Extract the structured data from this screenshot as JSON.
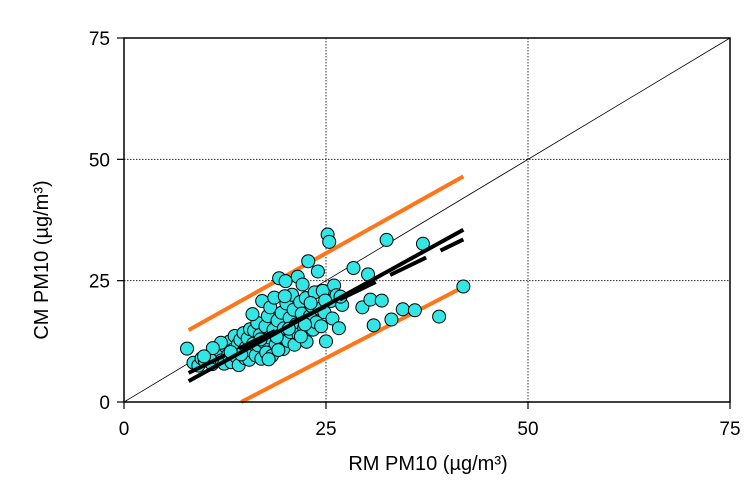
{
  "chart_data": {
    "type": "scatter",
    "xlabel": "RM PM10 (µg/m³)",
    "ylabel": "CM PM10 (µg/m³)",
    "xlim": [
      0,
      75
    ],
    "ylim": [
      0,
      75
    ],
    "x_ticks": [
      "0",
      "25",
      "50",
      "75"
    ],
    "y_ticks": [
      "0",
      "25",
      "50",
      "75"
    ],
    "grid": true,
    "legend": "none",
    "colors": {
      "points": "#33e6e6",
      "point_edge": "#000000",
      "regression": "#000000",
      "limits": "#ff7519",
      "identity": "#000000",
      "grid": "#000000"
    },
    "series": [
      {
        "type": "scatter",
        "points": [
          [
            7.8,
            11.0
          ],
          [
            8.6,
            8.1
          ],
          [
            9.2,
            7.5
          ],
          [
            9.6,
            9.0
          ],
          [
            10.0,
            8.5
          ],
          [
            10.5,
            9.5
          ],
          [
            10.9,
            7.8
          ],
          [
            11.3,
            9.2
          ],
          [
            11.8,
            10.6
          ],
          [
            12.1,
            8.6
          ],
          [
            12.4,
            7.9
          ],
          [
            12.6,
            11.4
          ],
          [
            12.9,
            9.7
          ],
          [
            13.1,
            12.5
          ],
          [
            13.3,
            8.2
          ],
          [
            13.5,
            10.8
          ],
          [
            13.7,
            13.6
          ],
          [
            13.9,
            9.3
          ],
          [
            14.1,
            11.9
          ],
          [
            14.2,
            7.6
          ],
          [
            14.4,
            12.8
          ],
          [
            14.6,
            10.1
          ],
          [
            14.8,
            14.2
          ],
          [
            15.0,
            9.0
          ],
          [
            15.1,
            11.3
          ],
          [
            15.3,
            13.1
          ],
          [
            15.5,
            8.7
          ],
          [
            15.6,
            15.0
          ],
          [
            15.8,
            10.5
          ],
          [
            16.0,
            12.0
          ],
          [
            16.1,
            14.7
          ],
          [
            16.3,
            9.6
          ],
          [
            16.5,
            16.3
          ],
          [
            16.6,
            11.7
          ],
          [
            16.8,
            13.8
          ],
          [
            17.0,
            8.9
          ],
          [
            17.1,
            20.8
          ],
          [
            17.3,
            12.4
          ],
          [
            17.5,
            15.6
          ],
          [
            17.6,
            10.2
          ],
          [
            17.8,
            17.7
          ],
          [
            18.0,
            13.3
          ],
          [
            18.1,
            19.5
          ],
          [
            18.3,
            9.5
          ],
          [
            18.5,
            14.9
          ],
          [
            18.6,
            21.5
          ],
          [
            18.8,
            11.9
          ],
          [
            19.0,
            16.8
          ],
          [
            19.2,
            25.5
          ],
          [
            19.3,
            13.7
          ],
          [
            19.5,
            18.4
          ],
          [
            19.7,
            10.9
          ],
          [
            19.8,
            15.2
          ],
          [
            20.0,
            24.9
          ],
          [
            20.1,
            20.3
          ],
          [
            20.3,
            12.6
          ],
          [
            20.5,
            17.3
          ],
          [
            20.6,
            14.4
          ],
          [
            20.8,
            22.1
          ],
          [
            21.0,
            19.0
          ],
          [
            21.1,
            11.8
          ],
          [
            21.3,
            16.0
          ],
          [
            21.5,
            25.8
          ],
          [
            21.6,
            13.9
          ],
          [
            21.8,
            20.6
          ],
          [
            22.0,
            18.2
          ],
          [
            22.1,
            24.2
          ],
          [
            22.3,
            15.3
          ],
          [
            22.5,
            21.4
          ],
          [
            22.6,
            12.4
          ],
          [
            22.8,
            29.0
          ],
          [
            23.0,
            17.7
          ],
          [
            23.2,
            19.8
          ],
          [
            23.4,
            14.9
          ],
          [
            23.6,
            22.6
          ],
          [
            23.8,
            16.4
          ],
          [
            24.0,
            26.9
          ],
          [
            24.2,
            19.2
          ],
          [
            24.4,
            15.6
          ],
          [
            24.6,
            22.9
          ],
          [
            24.8,
            18.5
          ],
          [
            25.0,
            12.5
          ],
          [
            25.2,
            34.5
          ],
          [
            25.4,
            33.0
          ],
          [
            25.6,
            20.8
          ],
          [
            25.8,
            17.2
          ],
          [
            26.0,
            24.0
          ],
          [
            26.3,
            22.0
          ],
          [
            26.6,
            15.2
          ],
          [
            27.0,
            20.0
          ],
          [
            28.4,
            27.6
          ],
          [
            29.5,
            19.5
          ],
          [
            30.2,
            26.3
          ],
          [
            30.5,
            21.1
          ],
          [
            30.9,
            15.8
          ],
          [
            31.9,
            20.9
          ],
          [
            32.5,
            33.4
          ],
          [
            33.1,
            17.0
          ],
          [
            34.5,
            19.1
          ],
          [
            36.0,
            18.9
          ],
          [
            37.0,
            32.6
          ],
          [
            39.0,
            17.6
          ],
          [
            42.0,
            23.8
          ],
          [
            16.9,
            12.9
          ],
          [
            18.9,
            13.4
          ],
          [
            20.4,
            15.1
          ],
          [
            21.9,
            13.5
          ],
          [
            23.1,
            20.4
          ],
          [
            19.9,
            21.8
          ],
          [
            17.9,
            8.8
          ],
          [
            15.9,
            18.1
          ],
          [
            14.5,
            9.8
          ],
          [
            13.2,
            10.3
          ],
          [
            12.0,
            12.2
          ],
          [
            11.0,
            11.1
          ],
          [
            9.9,
            9.4
          ],
          [
            19.1,
            10.7
          ],
          [
            22.4,
            16.0
          ],
          [
            24.9,
            20.9
          ],
          [
            26.8,
            21.7
          ]
        ]
      },
      {
        "type": "line",
        "name": "regression",
        "style": "solid",
        "x": [
          8,
          42
        ],
        "y": [
          4.3,
          35.5
        ]
      },
      {
        "type": "line",
        "name": "reference",
        "style": "dashed",
        "x": [
          8,
          42
        ],
        "y": [
          6.0,
          33.5
        ]
      },
      {
        "type": "line",
        "name": "upper-limit",
        "style": "solid",
        "x": [
          8,
          42
        ],
        "y": [
          14.8,
          46.5
        ]
      },
      {
        "type": "line",
        "name": "lower-limit",
        "style": "solid",
        "x": [
          14.5,
          42
        ],
        "y": [
          0,
          23.7
        ]
      },
      {
        "type": "line",
        "name": "identity",
        "style": "solid",
        "x": [
          0,
          75
        ],
        "y": [
          0,
          75
        ]
      }
    ]
  }
}
